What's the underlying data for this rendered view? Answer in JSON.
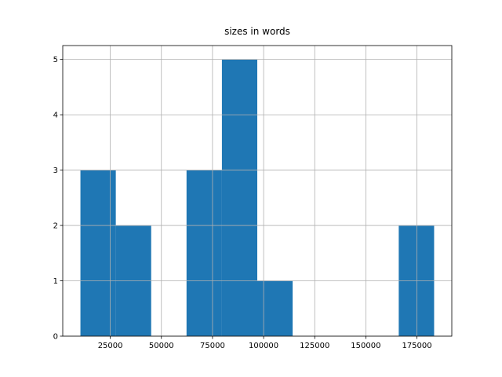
{
  "chart_data": {
    "type": "histogram",
    "title": "sizes in words",
    "bins": [
      10400,
      27700,
      45000,
      62300,
      79600,
      96900,
      114200,
      131500,
      148800,
      166100,
      183400
    ],
    "values": [
      3,
      2,
      0,
      3,
      5,
      1,
      0,
      0,
      0,
      2
    ],
    "color": "#1f77b4",
    "xlim": [
      1750,
      192050
    ],
    "xticks": [
      25000,
      50000,
      75000,
      100000,
      125000,
      150000,
      175000
    ],
    "ylim": [
      0,
      5.25
    ],
    "yticks": [
      0,
      1,
      2,
      3,
      4,
      5
    ],
    "grid": true
  }
}
